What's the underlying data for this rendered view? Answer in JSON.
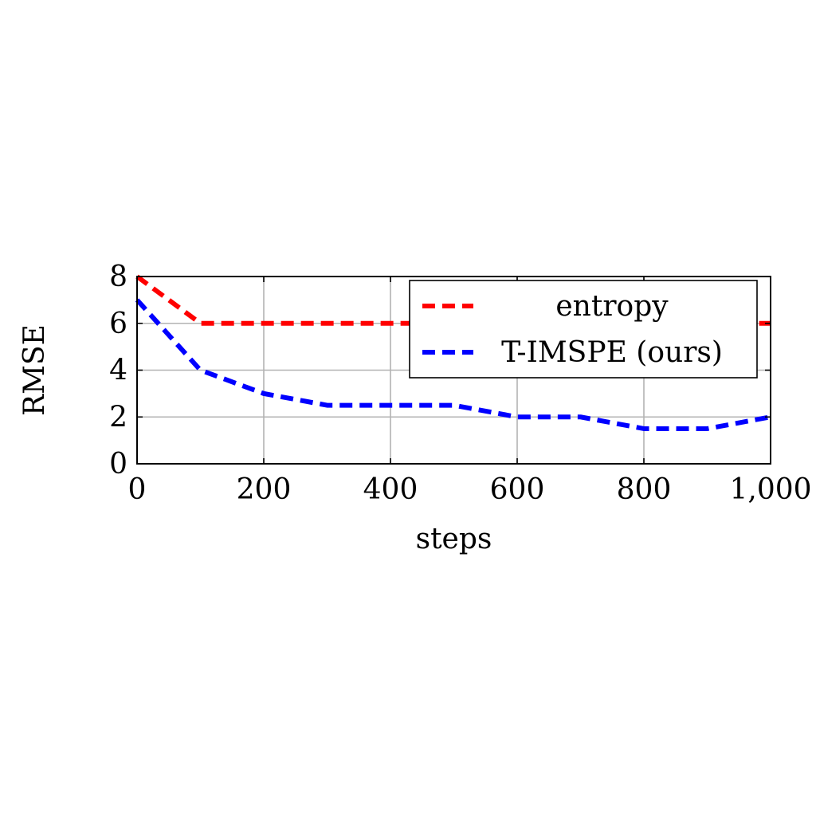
{
  "chart_data": {
    "type": "line",
    "title": "",
    "xlabel": "steps",
    "ylabel": "RMSE",
    "xlim": [
      0,
      1000
    ],
    "ylim": [
      0,
      8
    ],
    "xticks": [
      0,
      200,
      400,
      600,
      800,
      1000
    ],
    "xtick_labels": [
      "0",
      "200",
      "400",
      "600",
      "800",
      "1,000"
    ],
    "yticks": [
      0,
      2,
      4,
      6,
      8
    ],
    "ytick_labels": [
      "0",
      "2",
      "4",
      "6",
      "8"
    ],
    "grid": true,
    "legend_position": "top-right",
    "series": [
      {
        "name": "entropy",
        "color": "#ff0000",
        "style": "dashed",
        "x": [
          0,
          100,
          200,
          300,
          400,
          500,
          600,
          700,
          800,
          900,
          1000
        ],
        "y": [
          8,
          6,
          6,
          6,
          6,
          6,
          6,
          6,
          6,
          6,
          6
        ]
      },
      {
        "name": "T-IMSPE (ours)",
        "color": "#0000ff",
        "style": "dashed",
        "x": [
          0,
          100,
          200,
          300,
          400,
          500,
          600,
          700,
          800,
          900,
          1000
        ],
        "y": [
          7,
          4,
          3,
          2.5,
          2.5,
          2.5,
          2,
          2,
          1.5,
          1.5,
          2
        ]
      }
    ]
  }
}
